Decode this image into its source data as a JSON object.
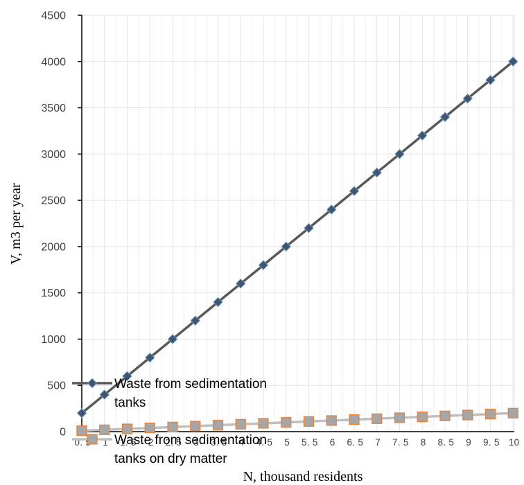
{
  "chart_data": {
    "type": "line",
    "x": [
      0.5,
      1,
      1.5,
      2,
      2.5,
      3,
      3.5,
      4,
      4.5,
      5,
      5.5,
      6,
      6.5,
      7,
      7.5,
      8,
      8.5,
      9,
      9.5,
      10
    ],
    "x_tick_labels": [
      "0.5",
      "1",
      "1.5",
      "2",
      "2.5",
      "3",
      "3.5",
      "4",
      "4.5",
      "5",
      "5.5",
      "6",
      "6.5",
      "7",
      "7.5",
      "8",
      "8.5",
      "9",
      "9.5",
      "10"
    ],
    "series": [
      {
        "name": "Waste from sedimentation tanks",
        "name_lines": [
          "Waste from sedimentation",
          "tanks"
        ],
        "values": [
          200,
          400,
          600,
          800,
          1000,
          1200,
          1400,
          1600,
          1800,
          2000,
          2200,
          2400,
          2600,
          2800,
          3000,
          3200,
          3400,
          3600,
          3800,
          4000
        ],
        "line_color": "#595959",
        "marker": "diamond",
        "marker_fill": "#44546a",
        "marker_edge": "#5b9bd5"
      },
      {
        "name": "Waste from sedimentation tanks on dry matter",
        "name_lines": [
          "Waste from sedimentation",
          "tanks on dry matter"
        ],
        "values": [
          10,
          20,
          30,
          40,
          50,
          60,
          70,
          80,
          90,
          100,
          110,
          120,
          130,
          140,
          150,
          160,
          170,
          180,
          190,
          200
        ],
        "line_color": "#bfbfbf",
        "marker": "square",
        "marker_fill": "#a6a6a6",
        "marker_edge": "#ed7d31"
      }
    ],
    "xlabel": "N, thousand residents",
    "ylabel": "V, m3 per year",
    "ylim": [
      0,
      4500
    ],
    "y_ticks": [
      0,
      500,
      1000,
      1500,
      2000,
      2500,
      3000,
      3500,
      4000,
      4500
    ],
    "grid": true,
    "legend_position": "bottom-left inside plot"
  }
}
